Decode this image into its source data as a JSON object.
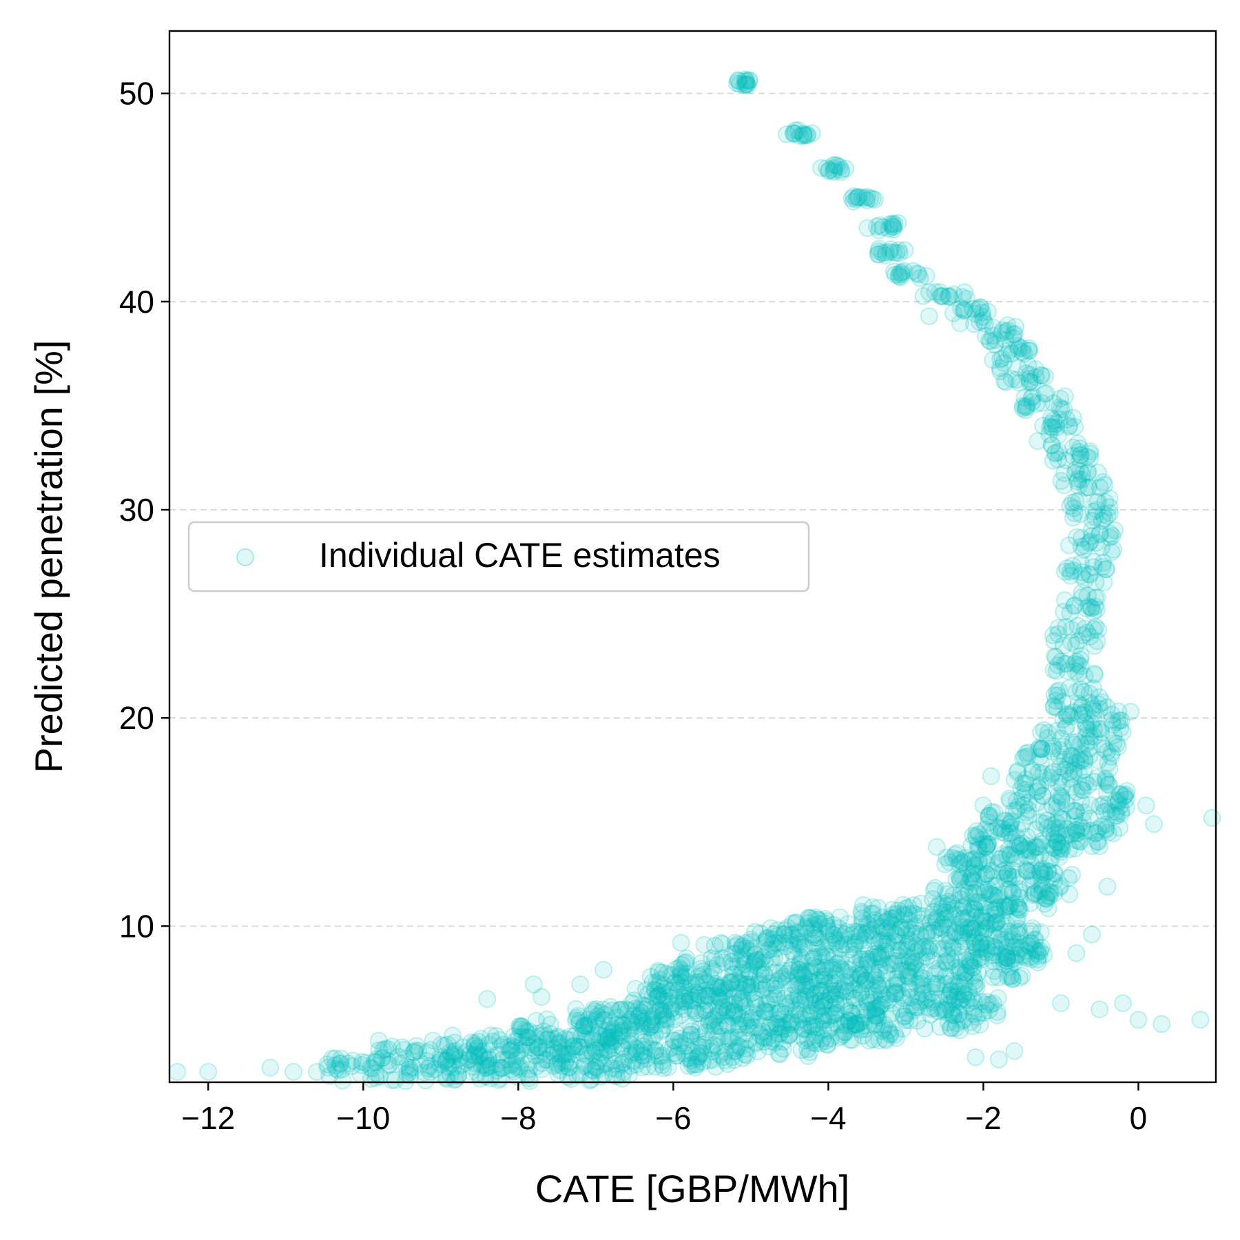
{
  "chart_data": {
    "type": "scatter",
    "title": "",
    "xlabel": "CATE [GBP/MWh]",
    "ylabel": "Predicted penetration [%]",
    "xlim": [
      -12.5,
      1.0
    ],
    "ylim": [
      2.5,
      53.0
    ],
    "x_ticks": [
      -12,
      -10,
      -8,
      -6,
      -4,
      -2,
      0
    ],
    "x_tick_labels": [
      "−12",
      "−10",
      "−8",
      "−6",
      "−4",
      "−2",
      "0"
    ],
    "y_ticks": [
      10,
      20,
      30,
      40,
      50
    ],
    "y_tick_labels": [
      "10",
      "20",
      "30",
      "40",
      "50"
    ],
    "grid": "y-dashed",
    "legend": {
      "label": "Individual CATE estimates",
      "placement": "center-left"
    },
    "colors": {
      "marker": "#00bfbf",
      "grid": "#d9d9d9",
      "axis": "#000000",
      "legend_border": "#cccccc"
    },
    "series": [
      {
        "name": "Individual CATE estimates",
        "band_profile": [
          [
            50.5,
            -5.2,
            -5.0
          ],
          [
            48.1,
            -4.6,
            -4.2
          ],
          [
            46.4,
            -4.1,
            -3.7
          ],
          [
            44.9,
            -3.7,
            -3.4
          ],
          [
            43.6,
            -3.5,
            -3.0
          ],
          [
            42.4,
            -3.4,
            -3.0
          ],
          [
            41.3,
            -3.2,
            -2.7
          ],
          [
            40.3,
            -2.8,
            -2.2
          ],
          [
            39.3,
            -2.4,
            -1.9
          ],
          [
            38.5,
            -2.0,
            -1.5
          ],
          [
            37.5,
            -1.9,
            -1.4
          ],
          [
            36.5,
            -1.8,
            -1.2
          ],
          [
            35.2,
            -1.5,
            -0.9
          ],
          [
            34.0,
            -1.3,
            -0.8
          ],
          [
            32.8,
            -1.2,
            -0.6
          ],
          [
            31.5,
            -1.0,
            -0.4
          ],
          [
            30.0,
            -0.95,
            -0.3
          ],
          [
            28.5,
            -0.9,
            -0.3
          ],
          [
            27.0,
            -1.0,
            -0.4
          ],
          [
            25.5,
            -1.0,
            -0.5
          ],
          [
            24.0,
            -1.1,
            -0.5
          ],
          [
            22.5,
            -1.1,
            -0.5
          ],
          [
            21.0,
            -1.1,
            -0.4
          ],
          [
            20.0,
            -1.1,
            -0.2
          ],
          [
            19.0,
            -1.3,
            -0.2
          ],
          [
            18.0,
            -1.5,
            -0.3
          ],
          [
            17.0,
            -1.6,
            -0.3
          ],
          [
            16.0,
            -1.7,
            -0.1
          ],
          [
            15.0,
            -2.0,
            -0.1
          ],
          [
            14.2,
            -2.3,
            -0.5
          ],
          [
            13.5,
            -2.5,
            -1.0
          ],
          [
            12.8,
            -2.5,
            -1.1
          ],
          [
            12.0,
            -2.4,
            -0.8
          ],
          [
            11.3,
            -2.7,
            -1.1
          ],
          [
            10.6,
            -3.6,
            -1.5
          ],
          [
            10.0,
            -4.5,
            -1.5
          ],
          [
            9.4,
            -5.0,
            -1.2
          ],
          [
            8.8,
            -5.5,
            -1.2
          ],
          [
            8.0,
            -6.0,
            -1.5
          ],
          [
            7.4,
            -6.3,
            -2.0
          ],
          [
            6.8,
            -6.5,
            -2.2
          ],
          [
            6.2,
            -6.8,
            -1.8
          ],
          [
            5.6,
            -7.3,
            -2.0
          ],
          [
            5.0,
            -8.0,
            -3.0
          ],
          [
            4.3,
            -9.0,
            -4.0
          ],
          [
            3.7,
            -10.0,
            -5.0
          ],
          [
            3.1,
            -10.5,
            -6.5
          ]
        ],
        "stray_points": [
          [
            -12.4,
            3.0
          ],
          [
            -12.0,
            3.0
          ],
          [
            -11.2,
            3.2
          ],
          [
            -10.9,
            3.0
          ],
          [
            -10.6,
            3.0
          ],
          [
            -10.2,
            3.4
          ],
          [
            -9.8,
            4.5
          ],
          [
            -9.4,
            3.1
          ],
          [
            -9.1,
            4.5
          ],
          [
            -8.4,
            6.5
          ],
          [
            -8.2,
            4.3
          ],
          [
            -7.8,
            7.2
          ],
          [
            -7.7,
            6.6
          ],
          [
            -7.2,
            7.2
          ],
          [
            -6.9,
            7.9
          ],
          [
            -5.9,
            9.2
          ],
          [
            -5.6,
            9.1
          ],
          [
            -5.2,
            9.2
          ],
          [
            -4.6,
            9.2
          ],
          [
            -4.3,
            9.0
          ],
          [
            -3.9,
            9.2
          ],
          [
            -2.8,
            7.5
          ],
          [
            -2.3,
            5.0
          ],
          [
            -2.1,
            3.7
          ],
          [
            -1.8,
            3.6
          ],
          [
            -1.6,
            4.0
          ],
          [
            -1.7,
            10.1
          ],
          [
            -1.5,
            8.6
          ],
          [
            -1.3,
            8.4
          ],
          [
            -1.0,
            6.3
          ],
          [
            -0.8,
            8.7
          ],
          [
            -0.5,
            6.0
          ],
          [
            -0.2,
            6.3
          ],
          [
            0.0,
            5.5
          ],
          [
            0.3,
            5.3
          ],
          [
            0.8,
            5.5
          ],
          [
            -0.6,
            9.6
          ],
          [
            -0.4,
            11.9
          ],
          [
            0.1,
            15.8
          ],
          [
            0.2,
            14.9
          ],
          [
            0.95,
            15.2
          ],
          [
            -0.1,
            20.3
          ],
          [
            -1.9,
            17.2
          ],
          [
            -2.0,
            15.8
          ],
          [
            -2.6,
            13.8
          ],
          [
            -1.3,
            33.3
          ],
          [
            -2.7,
            39.3
          ]
        ]
      }
    ]
  }
}
